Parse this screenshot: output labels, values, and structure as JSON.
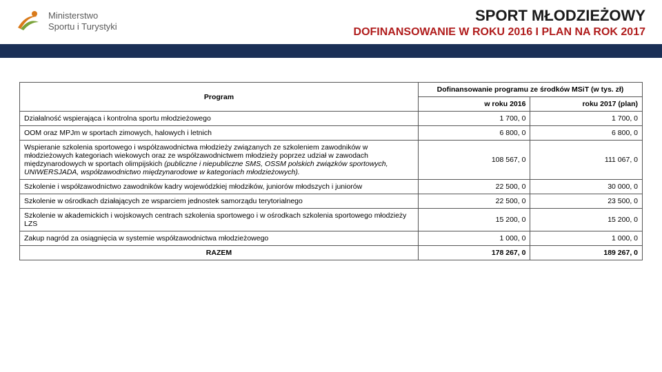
{
  "logo": {
    "line1": "Ministerstwo",
    "line2": "Sportu i Turystyki"
  },
  "title": {
    "main": "SPORT MŁODZIEŻOWY",
    "sub": "DOFINANSOWANIE W ROKU 2016 I PLAN NA ROK 2017"
  },
  "table": {
    "program_header": "Program",
    "group_header": "Dofinansowanie programu ze środków MSiT  (w tys. zł)",
    "col_2016": "w roku 2016",
    "col_2017": "roku 2017 (plan)",
    "rows": [
      {
        "label": "Działalność wspierająca i kontrolna sportu młodzieżowego",
        "v2016": "1 700, 0",
        "v2017": "1 700, 0",
        "italic": ""
      },
      {
        "label": "OOM oraz MPJm w sportach zimowych, halowych i letnich",
        "v2016": "6 800, 0",
        "v2017": "6 800, 0",
        "italic": ""
      },
      {
        "label": "Wspieranie szkolenia sportowego i współzawodnictwa młodzieży związanych ze szkoleniem zawodników w młodzieżowych kategoriach wiekowych oraz ze współzawodnictwem młodzieży poprzez udział w zawodach międzynarodowych w sportach olimpijskich ",
        "italic": "(publiczne i niepubliczne SMS, OSSM polskich związków sportowych, UNIWERSJADA, współzawodnictwo międzynarodowe w kategoriach młodzieżowych).",
        "v2016": "108 567, 0",
        "v2017": "111 067, 0"
      },
      {
        "label": "Szkolenie i współzawodnictwo zawodników kadry wojewódzkiej młodzików, juniorów młodszych i juniorów",
        "v2016": "22 500, 0",
        "v2017": "30 000, 0",
        "italic": ""
      },
      {
        "label": "Szkolenie w ośrodkach działających ze wsparciem jednostek samorządu terytorialnego",
        "v2016": "22 500, 0",
        "v2017": "23 500, 0",
        "italic": ""
      },
      {
        "label": "Szkolenie w akademickich i wojskowych centrach szkolenia sportowego i w ośrodkach szkolenia sportowego młodzieży  LZS",
        "v2016": "15 200, 0",
        "v2017": "15 200, 0",
        "italic": ""
      },
      {
        "label": "Zakup nagród za osiągnięcia w systemie współzawodnictwa młodzieżowego",
        "v2016": "1 000, 0",
        "v2017": "1 000, 0",
        "italic": ""
      }
    ],
    "total": {
      "label": "RAZEM",
      "v2016": "178 267, 0",
      "v2017": "189 267, 0"
    }
  },
  "colors": {
    "bar": "#1a2f56",
    "subtitle": "#b01c1c",
    "logo_orange": "#d97a1a",
    "logo_green": "#7aa33a"
  }
}
